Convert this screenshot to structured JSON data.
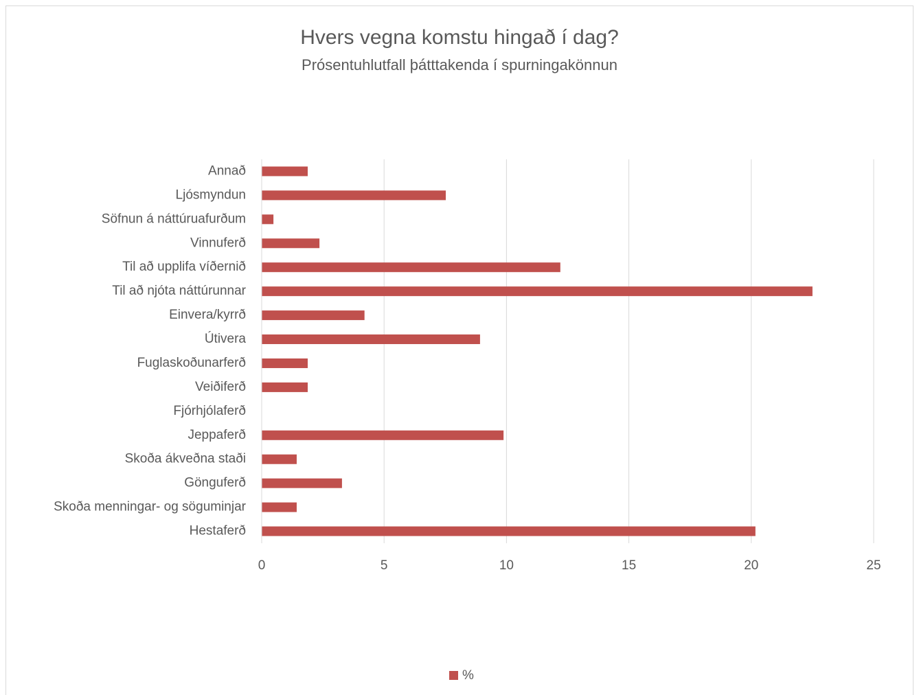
{
  "chart_data": {
    "type": "bar",
    "orientation": "horizontal",
    "title": "Hvers vegna komstu hingað í dag?",
    "subtitle": "Prósentuhlutfall þátttakenda í spurningakönnun",
    "categories": [
      "Annað",
      "Ljósmyndun",
      "Söfnun á náttúruafurðum",
      "Vinnuferð",
      "Til að upplifa víðernið",
      "Til að njóta náttúrunnar",
      "Einvera/kyrrð",
      "Útivera",
      "Fuglaskoðunarferð",
      "Veiðiferð",
      "Fjórhjólaferð",
      "Jeppaferð",
      "Skoða ákveðna staði",
      "Gönguferð",
      "Skoða menningar- og söguminjar",
      "Hestaferð"
    ],
    "series": [
      {
        "name": "%",
        "color": "#c0504d",
        "values": [
          1.88,
          7.52,
          0.48,
          2.36,
          12.2,
          22.5,
          4.2,
          8.92,
          1.88,
          1.88,
          0,
          9.88,
          1.43,
          3.28,
          1.43,
          20.17
        ]
      }
    ],
    "xlim": [
      0,
      25
    ],
    "xticks": [
      0,
      5,
      10,
      15,
      20,
      25
    ],
    "grid": true,
    "legend": "bottom"
  }
}
